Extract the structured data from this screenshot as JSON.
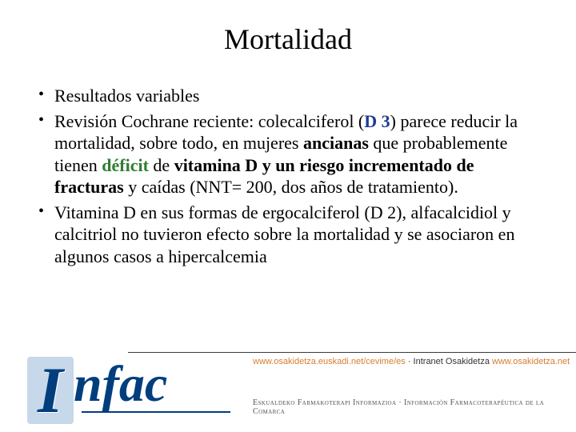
{
  "title": "Mortalidad",
  "bullets": {
    "b1": "Resultados variables",
    "b2": {
      "pre": "Revisión Cochrane reciente: colecalciferol (",
      "d3": "D 3",
      "after_d3": ") parece reducir la mortalidad, sobre todo, en mujeres ",
      "ancianas": "ancianas",
      "mid": " que probablemente tienen ",
      "deficit": "déficit",
      "de": " de ",
      "vit_bold": "vitamina D y un riesgo incrementado de fracturas",
      "post": " y caídas (NNT= 200, dos años de tratamiento)."
    },
    "b3": "Vitamina D en sus formas de ergocalciferol (D 2), alfacalcidiol y calcitriol no tuvieron efecto sobre la mortalidad y se asociaron en algunos casos a hipercalcemia"
  },
  "footer": {
    "url_part1": "www.osakidetza.euskadi.net/cevime/es",
    "sep": " · ",
    "url_part2_label": "Intranet Osakidetza ",
    "url_part2": "www.osakidetza.net",
    "eusk": "Eskualdeko Farmakoterapi Informazioa · Información Farmacoterapéutica de la Comarca"
  },
  "logo": {
    "i": "I",
    "rest": "nfac"
  },
  "colors": {
    "d3": "#1f3a93",
    "green": "#2e7d32",
    "logo_blue": "#003e7e",
    "logo_bg": "#c6d8e9",
    "url_orange": "#d97c2e"
  }
}
